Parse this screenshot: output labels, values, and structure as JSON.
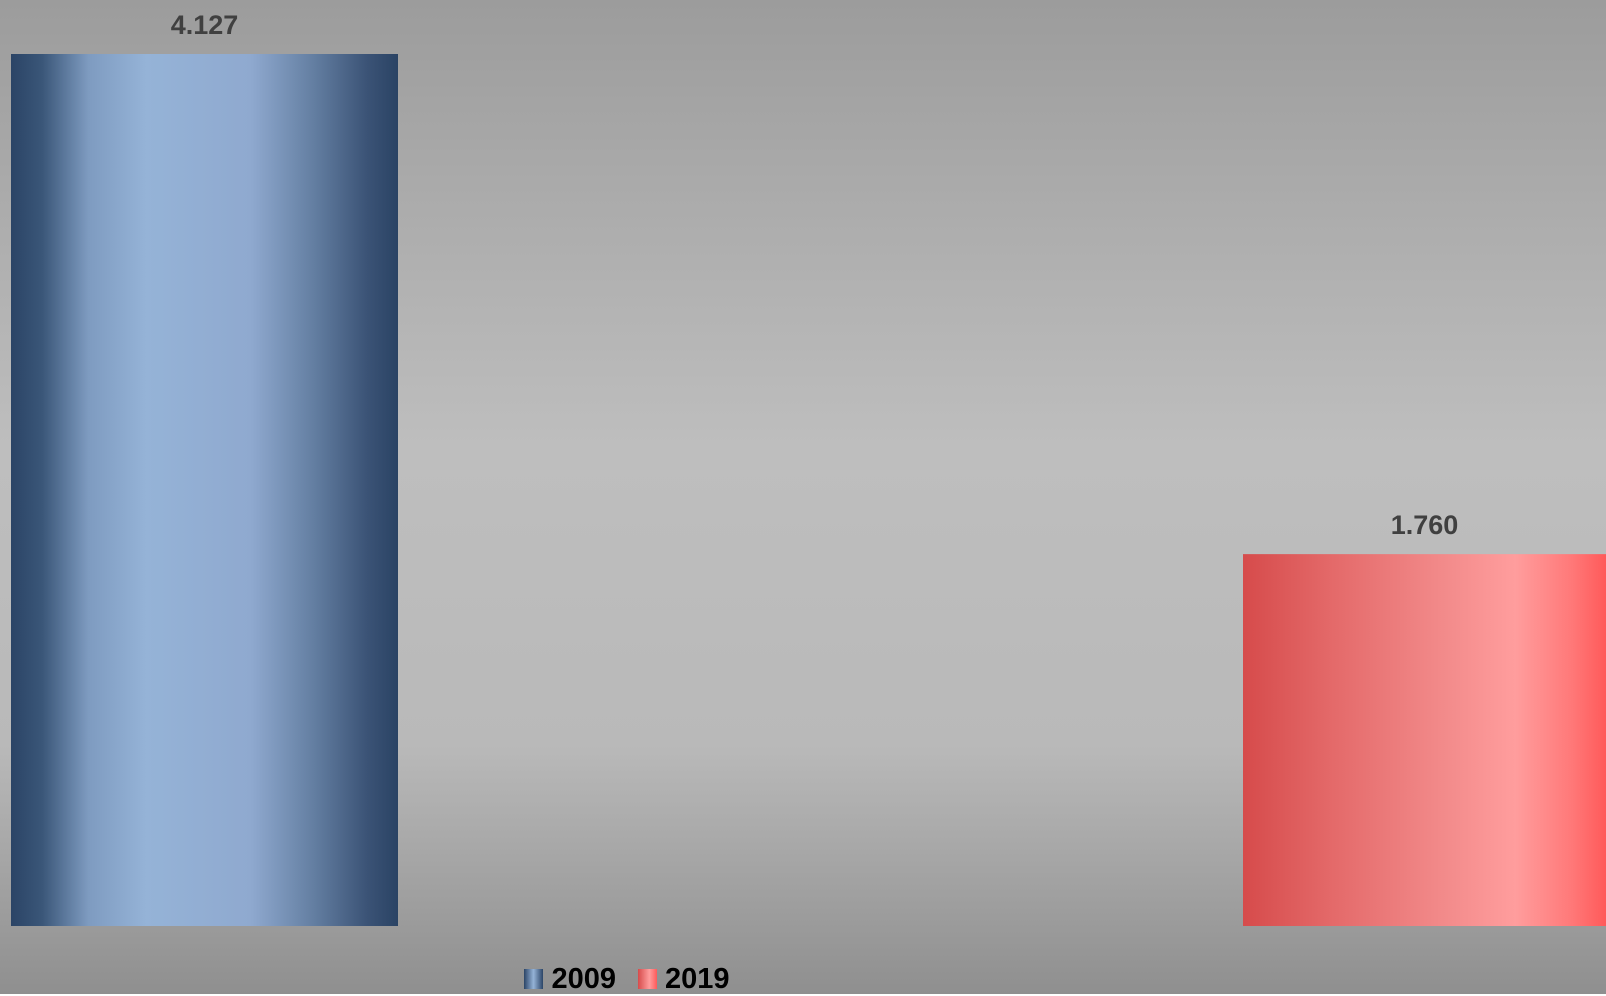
{
  "chart_data": {
    "type": "bar",
    "title": "",
    "xlabel": "",
    "ylabel": "",
    "categories": [
      ""
    ],
    "ylim": [
      0,
      4.127
    ],
    "grid": false,
    "legend_position": "bottom",
    "series": [
      {
        "name": "2009",
        "values": [
          4.127
        ],
        "label": "4.127",
        "color": "#95b3d7",
        "edge_color": "#2b4466"
      },
      {
        "name": "2019",
        "values": [
          1.76
        ],
        "label": "1.760",
        "color": "#ff9b9b",
        "edge_color": "#d64b4b"
      }
    ]
  }
}
